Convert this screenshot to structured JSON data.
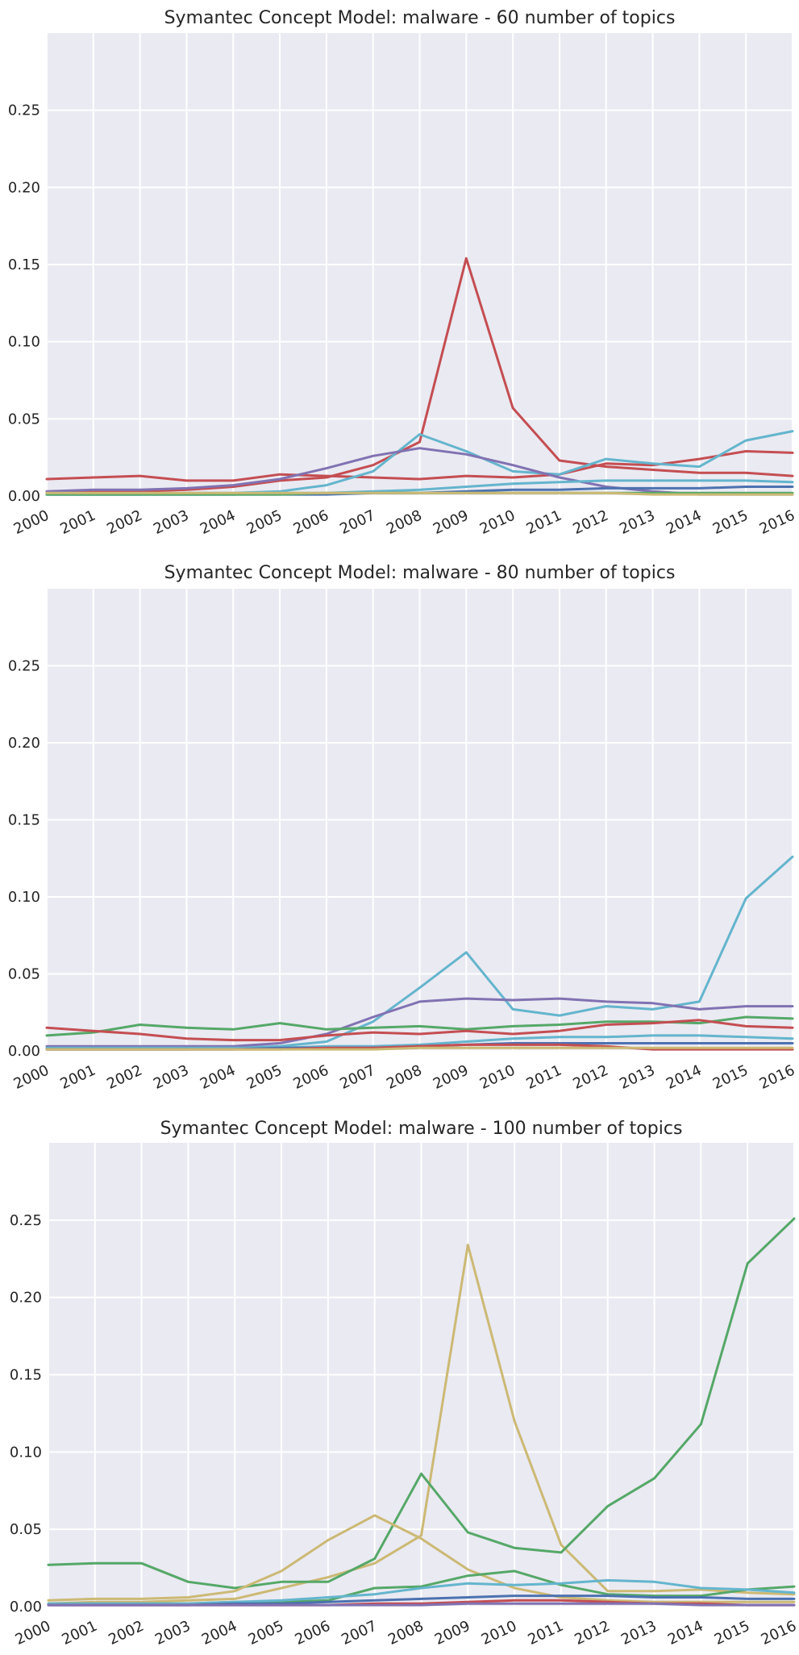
{
  "colors": {
    "background": "#EAEAF2",
    "grid": "#FFFFFF",
    "text": "#262626",
    "blue": "#4C72B0",
    "green": "#55A868",
    "red": "#C44E52",
    "purple": "#8172B2",
    "gold": "#CCB974",
    "cyan": "#64B5CD"
  },
  "chart_data": [
    {
      "type": "line",
      "title": "Symantec Concept Model: malware - 60 number of topics",
      "x": [
        2000,
        2001,
        2002,
        2003,
        2004,
        2005,
        2006,
        2007,
        2008,
        2009,
        2010,
        2011,
        2012,
        2013,
        2014,
        2015,
        2016
      ],
      "xticklabels": [
        "2000",
        "2001",
        "2002",
        "2003",
        "2004",
        "2005",
        "2006",
        "2007",
        "2008",
        "2009",
        "2010",
        "2011",
        "2012",
        "2013",
        "2014",
        "2015",
        "2016"
      ],
      "yticks": [
        "0.00",
        "0.05",
        "0.10",
        "0.15",
        "0.20",
        "0.25"
      ],
      "ylim": [
        0,
        0.3
      ],
      "grid": true,
      "series": [
        {
          "color": "#C44E52",
          "values": [
            0.002,
            0.003,
            0.003,
            0.004,
            0.006,
            0.01,
            0.012,
            0.02,
            0.035,
            0.154,
            0.057,
            0.023,
            0.019,
            0.017,
            0.015,
            0.015,
            0.013
          ]
        },
        {
          "color": "#C44E52",
          "values": [
            0.011,
            0.012,
            0.013,
            0.01,
            0.01,
            0.014,
            0.013,
            0.012,
            0.011,
            0.013,
            0.012,
            0.014,
            0.021,
            0.02,
            0.024,
            0.029,
            0.028
          ]
        },
        {
          "color": "#64B5CD",
          "values": [
            0.001,
            0.001,
            0.001,
            0.002,
            0.002,
            0.003,
            0.007,
            0.016,
            0.04,
            0.029,
            0.016,
            0.014,
            0.024,
            0.021,
            0.019,
            0.036,
            0.042
          ]
        },
        {
          "color": "#8172B2",
          "values": [
            0.003,
            0.004,
            0.004,
            0.005,
            0.007,
            0.011,
            0.018,
            0.026,
            0.031,
            0.027,
            0.02,
            0.012,
            0.006,
            0.003,
            0.001,
            0.001,
            0.001
          ]
        },
        {
          "color": "#64B5CD",
          "values": [
            0.001,
            0.001,
            0.001,
            0.001,
            0.001,
            0.002,
            0.002,
            0.003,
            0.004,
            0.006,
            0.008,
            0.009,
            0.01,
            0.01,
            0.01,
            0.01,
            0.009
          ]
        },
        {
          "color": "#4C72B0",
          "values": [
            0.001,
            0.001,
            0.001,
            0.001,
            0.001,
            0.001,
            0.001,
            0.002,
            0.002,
            0.003,
            0.004,
            0.004,
            0.005,
            0.005,
            0.005,
            0.006,
            0.006
          ]
        },
        {
          "color": "#55A868",
          "values": [
            0.001,
            0.001,
            0.001,
            0.001,
            0.001,
            0.001,
            0.002,
            0.002,
            0.002,
            0.002,
            0.002,
            0.002,
            0.002,
            0.002,
            0.002,
            0.002,
            0.002
          ]
        },
        {
          "color": "#CCB974",
          "values": [
            0.002,
            0.002,
            0.002,
            0.002,
            0.002,
            0.002,
            0.002,
            0.002,
            0.002,
            0.002,
            0.002,
            0.002,
            0.002,
            0.001,
            0.001,
            0.001,
            0.001
          ]
        }
      ]
    },
    {
      "type": "line",
      "title": "Symantec Concept Model: malware - 80 number of topics",
      "x": [
        2000,
        2001,
        2002,
        2003,
        2004,
        2005,
        2006,
        2007,
        2008,
        2009,
        2010,
        2011,
        2012,
        2013,
        2014,
        2015,
        2016
      ],
      "xticklabels": [
        "2000",
        "2001",
        "2002",
        "2003",
        "2004",
        "2005",
        "2006",
        "2007",
        "2008",
        "2009",
        "2010",
        "2011",
        "2012",
        "2013",
        "2014",
        "2015",
        "2016"
      ],
      "yticks": [
        "0.00",
        "0.05",
        "0.10",
        "0.15",
        "0.20",
        "0.25"
      ],
      "ylim": [
        0,
        0.3
      ],
      "grid": true,
      "series": [
        {
          "color": "#64B5CD",
          "values": [
            0.001,
            0.001,
            0.001,
            0.001,
            0.002,
            0.003,
            0.006,
            0.019,
            0.041,
            0.064,
            0.027,
            0.023,
            0.029,
            0.027,
            0.032,
            0.099,
            0.126
          ]
        },
        {
          "color": "#8172B2",
          "values": [
            0.003,
            0.003,
            0.003,
            0.003,
            0.003,
            0.005,
            0.011,
            0.022,
            0.032,
            0.034,
            0.033,
            0.034,
            0.032,
            0.031,
            0.027,
            0.029,
            0.029
          ]
        },
        {
          "color": "#55A868",
          "values": [
            0.01,
            0.012,
            0.017,
            0.015,
            0.014,
            0.018,
            0.014,
            0.015,
            0.016,
            0.014,
            0.016,
            0.017,
            0.019,
            0.019,
            0.018,
            0.022,
            0.021
          ]
        },
        {
          "color": "#C44E52",
          "values": [
            0.015,
            0.013,
            0.011,
            0.008,
            0.007,
            0.007,
            0.01,
            0.012,
            0.011,
            0.013,
            0.011,
            0.013,
            0.017,
            0.018,
            0.02,
            0.016,
            0.015
          ]
        },
        {
          "color": "#64B5CD",
          "values": [
            0.002,
            0.002,
            0.002,
            0.002,
            0.002,
            0.002,
            0.003,
            0.003,
            0.004,
            0.006,
            0.008,
            0.009,
            0.009,
            0.01,
            0.01,
            0.009,
            0.008
          ]
        },
        {
          "color": "#4C72B0",
          "values": [
            0.001,
            0.001,
            0.001,
            0.001,
            0.001,
            0.002,
            0.002,
            0.002,
            0.003,
            0.004,
            0.005,
            0.005,
            0.005,
            0.005,
            0.005,
            0.005,
            0.005
          ]
        },
        {
          "color": "#C44E52",
          "values": [
            0.001,
            0.001,
            0.001,
            0.001,
            0.001,
            0.001,
            0.002,
            0.002,
            0.003,
            0.004,
            0.004,
            0.004,
            0.003,
            0.001,
            0.001,
            0.001,
            0.001
          ]
        },
        {
          "color": "#CCB974",
          "values": [
            0.001,
            0.001,
            0.001,
            0.001,
            0.001,
            0.001,
            0.001,
            0.001,
            0.002,
            0.002,
            0.002,
            0.002,
            0.002,
            0.002,
            0.002,
            0.002,
            0.002
          ]
        }
      ]
    },
    {
      "type": "line",
      "title": "Symantec Concept Model: malware - 100 number of topics",
      "x": [
        2000,
        2001,
        2002,
        2003,
        2004,
        2005,
        2006,
        2007,
        2008,
        2009,
        2010,
        2011,
        2012,
        2013,
        2014,
        2015,
        2016
      ],
      "xticklabels": [
        "2000",
        "2001",
        "2002",
        "2003",
        "2004",
        "2005",
        "2006",
        "2007",
        "2008",
        "2009",
        "2010",
        "2011",
        "2012",
        "2013",
        "2014",
        "2015",
        "2016"
      ],
      "yticks": [
        "0.00",
        "0.05",
        "0.10",
        "0.15",
        "0.20",
        "0.25"
      ],
      "ylim": [
        0,
        0.3
      ],
      "grid": true,
      "series": [
        {
          "color": "#CCB974",
          "values": [
            0.002,
            0.003,
            0.003,
            0.004,
            0.005,
            0.012,
            0.019,
            0.028,
            0.046,
            0.234,
            0.12,
            0.04,
            0.01,
            0.01,
            0.011,
            0.009,
            0.008
          ]
        },
        {
          "color": "#55A868",
          "values": [
            0.027,
            0.028,
            0.028,
            0.016,
            0.012,
            0.016,
            0.016,
            0.031,
            0.086,
            0.048,
            0.038,
            0.035,
            0.065,
            0.083,
            0.118,
            0.222,
            0.251
          ]
        },
        {
          "color": "#CCB974",
          "values": [
            0.004,
            0.005,
            0.005,
            0.006,
            0.01,
            0.023,
            0.043,
            0.059,
            0.044,
            0.024,
            0.012,
            0.006,
            0.004,
            0.003,
            0.003,
            0.003,
            0.003
          ]
        },
        {
          "color": "#55A868",
          "values": [
            0.002,
            0.002,
            0.002,
            0.002,
            0.003,
            0.003,
            0.004,
            0.012,
            0.013,
            0.02,
            0.023,
            0.014,
            0.008,
            0.007,
            0.007,
            0.011,
            0.013
          ]
        },
        {
          "color": "#64B5CD",
          "values": [
            0.002,
            0.002,
            0.002,
            0.002,
            0.003,
            0.004,
            0.006,
            0.008,
            0.012,
            0.015,
            0.014,
            0.015,
            0.017,
            0.016,
            0.012,
            0.011,
            0.009
          ]
        },
        {
          "color": "#4C72B0",
          "values": [
            0.001,
            0.001,
            0.001,
            0.001,
            0.002,
            0.002,
            0.003,
            0.004,
            0.005,
            0.006,
            0.007,
            0.007,
            0.007,
            0.006,
            0.006,
            0.005,
            0.005
          ]
        },
        {
          "color": "#C44E52",
          "values": [
            0.001,
            0.001,
            0.001,
            0.001,
            0.001,
            0.001,
            0.001,
            0.002,
            0.002,
            0.003,
            0.004,
            0.004,
            0.003,
            0.002,
            0.002,
            0.001,
            0.001
          ]
        },
        {
          "color": "#8172B2",
          "values": [
            0.001,
            0.001,
            0.001,
            0.001,
            0.001,
            0.001,
            0.001,
            0.001,
            0.001,
            0.002,
            0.002,
            0.002,
            0.002,
            0.002,
            0.001,
            0.001,
            0.001
          ]
        }
      ]
    }
  ]
}
